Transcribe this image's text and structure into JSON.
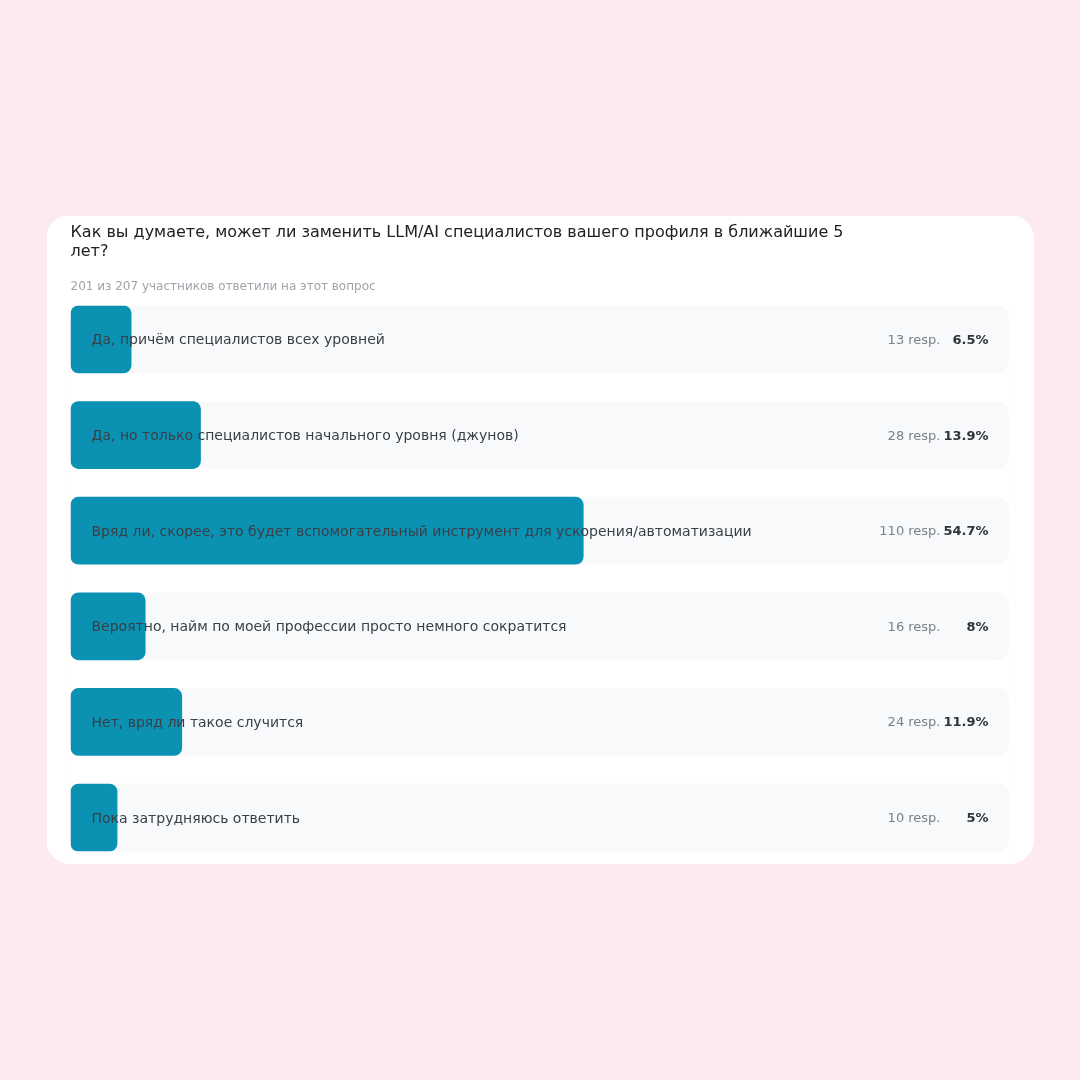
{
  "chart_data": {
    "type": "bar",
    "orientation": "horizontal",
    "title": "Как вы думаете, может ли заменить LLM/AI специалистов вашего профиля в ближайшие 5 лет?",
    "subtitle": "201 из 207 участников ответили на этот вопрос",
    "categories": [
      "Да, причём специалистов всех уровней",
      "Да, но только специалистов начального уровня (джунов)",
      "Вряд ли, скорее, это будет вспомогательный инструмент для ускорения/автоматизации",
      "Вероятно, найм по моей профессии просто немного сократится",
      "Нет, вряд ли такое случится",
      "Пока затрудняюсь ответить"
    ],
    "values": [
      6.5,
      13.9,
      54.7,
      8,
      11.9,
      5
    ],
    "value_labels": [
      "6.5%",
      "13.9%",
      "54.7%",
      "8%",
      "11.9%",
      "5%"
    ],
    "color": "#0b91b2",
    "xlim": [
      0,
      100
    ],
    "tick_labels": false,
    "grid": false,
    "annotations": [
      "13 resp.",
      "28 resp.",
      "110 resp.",
      "16 resp.",
      "24 resp.",
      "10 resp."
    ]
  }
}
